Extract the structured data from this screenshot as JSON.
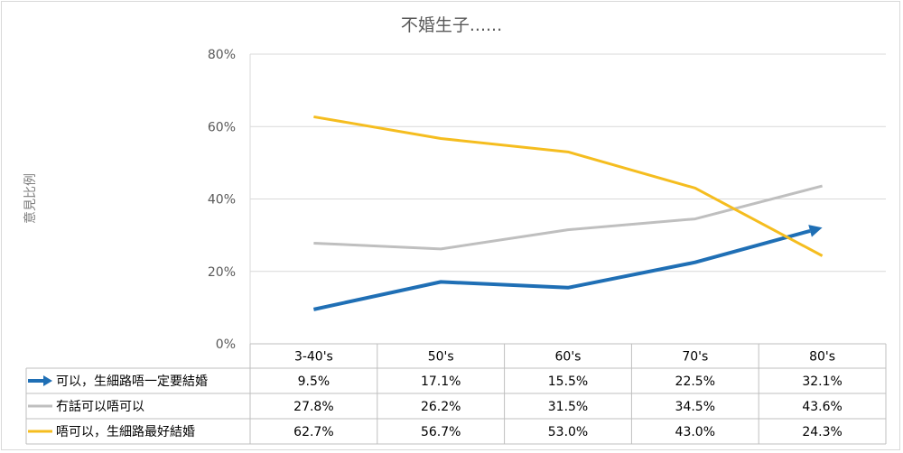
{
  "chart_data": {
    "type": "line",
    "title": "不婚生子......",
    "ylabel": "意見比例",
    "xlabel": "",
    "ylim": [
      0,
      80
    ],
    "yticks": [
      "0%",
      "20%",
      "40%",
      "60%",
      "80%"
    ],
    "categories": [
      "3-40's",
      "50's",
      "60's",
      "70's",
      "80's"
    ],
    "grid": true,
    "legend_placement": "data-table",
    "series": [
      {
        "name": "可以，生細路唔一定要結婚",
        "values": [
          9.5,
          17.1,
          15.5,
          22.5,
          32.1
        ],
        "labels": [
          "9.5%",
          "17.1%",
          "15.5%",
          "22.5%",
          "32.1%"
        ],
        "color": "#1f6fb5",
        "marker": "arrow"
      },
      {
        "name": "冇話可以唔可以",
        "values": [
          27.8,
          26.2,
          31.5,
          34.5,
          43.6
        ],
        "labels": [
          "27.8%",
          "26.2%",
          "31.5%",
          "34.5%",
          "43.6%"
        ],
        "color": "#bfbfbf",
        "marker": "none"
      },
      {
        "name": "唔可以，生細路最好結婚",
        "values": [
          62.7,
          56.7,
          53.0,
          43.0,
          24.3
        ],
        "labels": [
          "62.7%",
          "56.7%",
          "53.0%",
          "43.0%",
          "24.3%"
        ],
        "color": "#f5bd1f",
        "marker": "none"
      }
    ]
  }
}
